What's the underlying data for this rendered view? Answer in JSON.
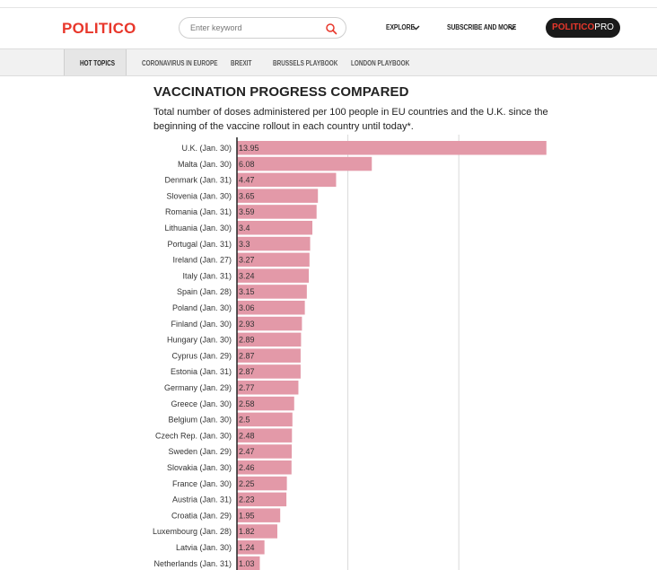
{
  "header": {
    "logo": "POLITICO",
    "search_placeholder": "Enter keyword",
    "explore_label": "EXPLORE",
    "subscribe_label": "SUBSCRIBE AND MORE",
    "pro_label_main": "POLITICO",
    "pro_label_suffix": "PRO"
  },
  "subnav": {
    "items": [
      "HOT TOPICS",
      "CORONAVIRUS IN EUROPE",
      "BREXIT",
      "BRUSSELS PLAYBOOK",
      "LONDON PLAYBOOK"
    ]
  },
  "colors": {
    "brand": "#e8372b",
    "bar": "#e399a8",
    "pro_bg": "#1a1a1a"
  },
  "chart_data": {
    "type": "bar",
    "orientation": "horizontal",
    "title": "VACCINATION PROGRESS COMPARED",
    "subtitle": "Total number of doses administered per 100 people in EU countries and the U.K. since the beginning of the vaccine rollout in each country until today*.",
    "categories": [
      "U.K. (Jan. 30)",
      "Malta (Jan. 30)",
      "Denmark (Jan. 31)",
      "Slovenia (Jan. 30)",
      "Romania (Jan. 31)",
      "Lithuania (Jan. 30)",
      "Portugal (Jan. 31)",
      "Ireland (Jan. 27)",
      "Italy (Jan. 31)",
      "Spain (Jan. 28)",
      "Poland (Jan. 30)",
      "Finland (Jan. 30)",
      "Hungary (Jan. 30)",
      "Cyprus (Jan. 29)",
      "Estonia (Jan. 31)",
      "Germany (Jan. 29)",
      "Greece (Jan. 30)",
      "Belgium (Jan. 30)",
      "Czech Rep. (Jan. 30)",
      "Sweden (Jan. 29)",
      "Slovakia (Jan. 30)",
      "France (Jan. 30)",
      "Austria (Jan. 31)",
      "Croatia (Jan. 29)",
      "Luxembourg (Jan. 28)",
      "Latvia (Jan. 30)",
      "Netherlands (Jan. 31)"
    ],
    "values": [
      13.95,
      6.08,
      4.47,
      3.65,
      3.59,
      3.4,
      3.3,
      3.27,
      3.24,
      3.15,
      3.06,
      2.93,
      2.89,
      2.87,
      2.87,
      2.77,
      2.58,
      2.5,
      2.48,
      2.47,
      2.46,
      2.25,
      2.23,
      1.95,
      1.82,
      1.24,
      1.03
    ],
    "value_labels": [
      "13.95",
      "6.08",
      "4.47",
      "3.65",
      "3.59",
      "3.4",
      "3.3",
      "3.27",
      "3.24",
      "3.15",
      "3.06",
      "2.93",
      "2.89",
      "2.87",
      "2.87",
      "2.77",
      "2.58",
      "2.5",
      "2.48",
      "2.47",
      "2.46",
      "2.25",
      "2.23",
      "1.95",
      "1.82",
      "1.24",
      "1.03"
    ],
    "xlim": [
      0,
      14
    ],
    "gridlines": [
      5,
      10
    ],
    "grid": true
  }
}
